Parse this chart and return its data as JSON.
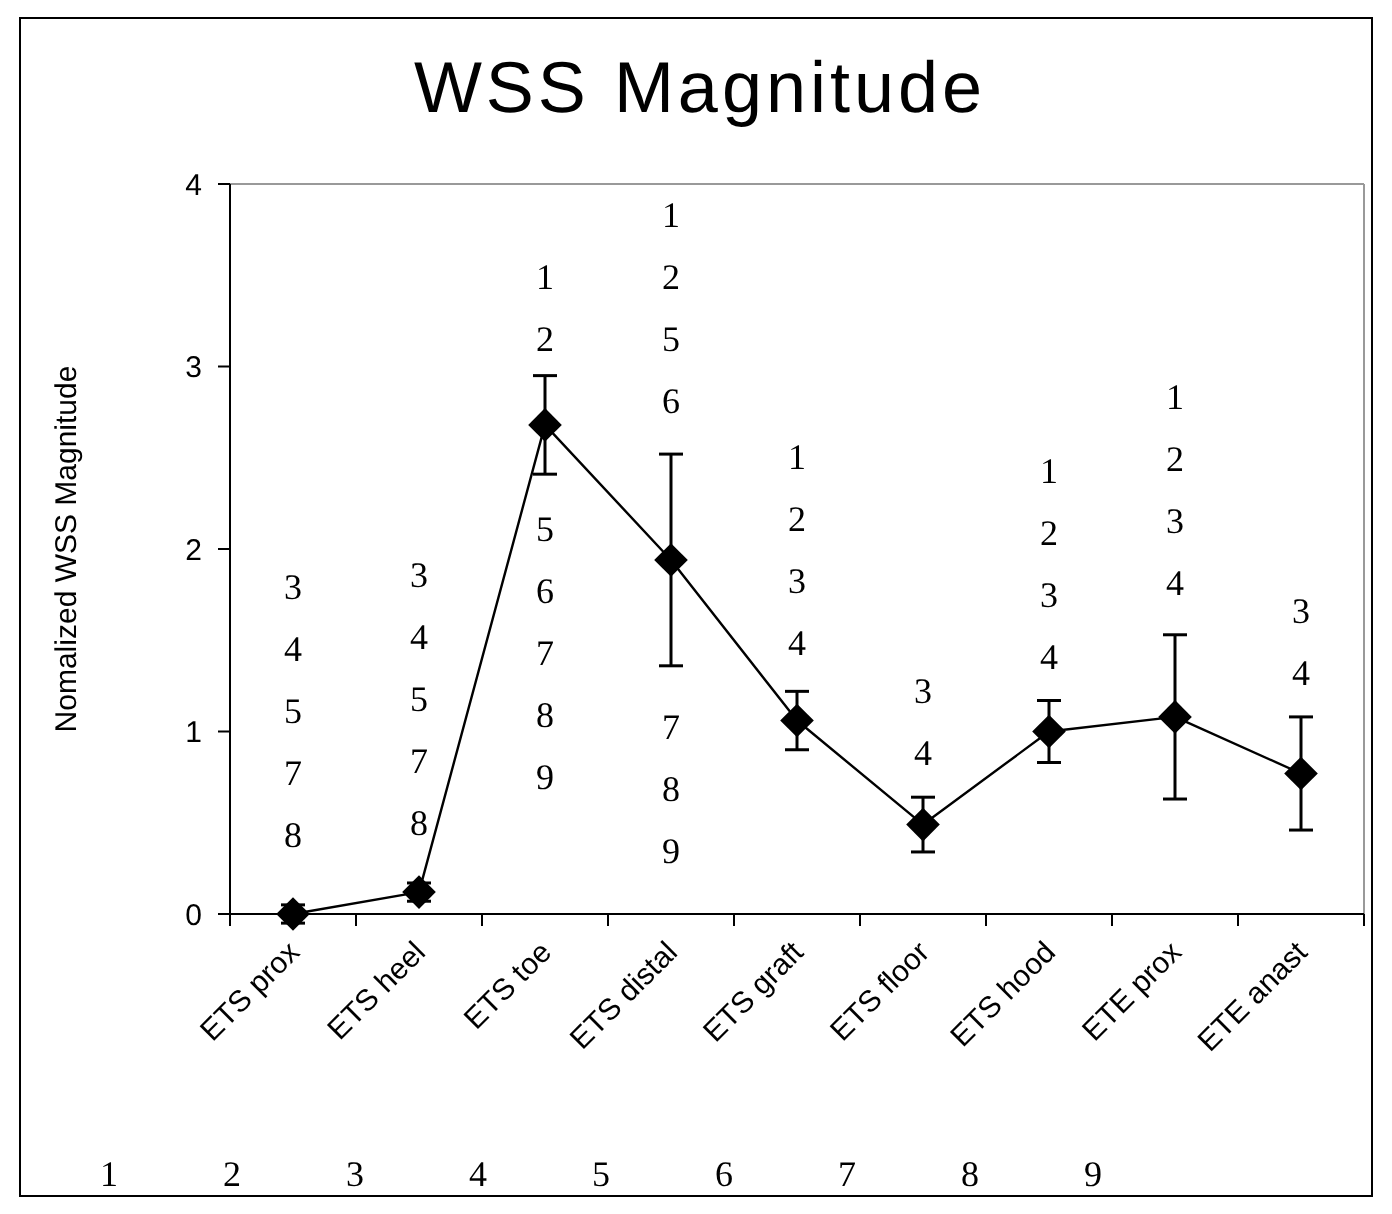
{
  "chart_data": {
    "type": "line",
    "title": "WSS Magnitude",
    "ylabel": "Nomalized WSS Magnitude",
    "categories": [
      "ETS prox",
      "ETS heel",
      "ETS toe",
      "ETS distal",
      "ETS graft",
      "ETS floor",
      "ETS hood",
      "ETE prox",
      "ETE anast"
    ],
    "series": [
      {
        "color": "#000000",
        "values": [
          0.0,
          0.12,
          2.68,
          1.94,
          1.06,
          0.49,
          1.0,
          1.08,
          0.77
        ],
        "errors": [
          0.05,
          0.05,
          0.27,
          0.58,
          0.16,
          0.15,
          0.17,
          0.45,
          0.31
        ]
      }
    ],
    "ylim": [
      0,
      4
    ],
    "yticks": [
      0,
      1,
      2,
      3,
      4
    ],
    "grid": false,
    "marker": "diamond",
    "line_style": "solid",
    "annotations": [
      "3\n4\n5\n7\n8",
      "3\n4\n5\n7\n8",
      "1\n2",
      "5\n6\n7\n8\n9",
      "1\n2\n5\n6",
      "7\n8\n9",
      "1\n2\n3\n4",
      "3\n4",
      "1\n2\n3\n4",
      "1\n2\n3\n4",
      "3\n4",
      "1 2 3 4 5 6 7 8 9"
    ]
  }
}
